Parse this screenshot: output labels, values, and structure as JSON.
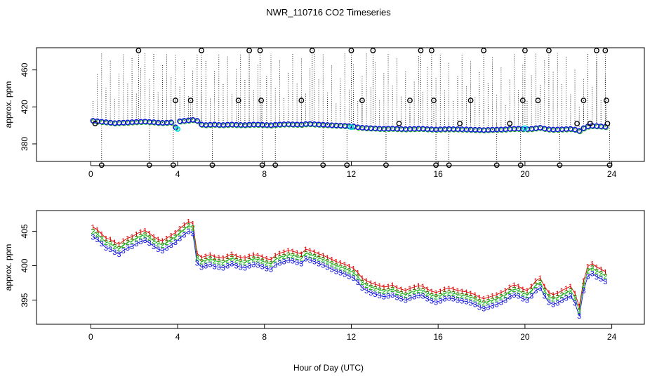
{
  "title": "NWR_110716  CO2 Timeseries",
  "colors": {
    "blue": "#1010e0",
    "red": "#e00000",
    "green": "#10b010",
    "cyan": "#00e0e0",
    "black": "#000000"
  },
  "chart_data": [
    {
      "type": "scatter",
      "name": "top-panel",
      "xlabel": "",
      "ylabel": "approx. ppm",
      "xlim": [
        -2.5,
        25.5
      ],
      "ylim": [
        361,
        484
      ],
      "xticks": [
        0,
        4,
        8,
        12,
        16,
        20,
        24
      ],
      "yticks": [
        380,
        420,
        460
      ],
      "grid": false,
      "main_series": {
        "name": "co2",
        "x": [
          0.1,
          0.3,
          0.5,
          0.7,
          0.9,
          1.1,
          1.3,
          1.5,
          1.7,
          1.9,
          2.1,
          2.3,
          2.5,
          2.7,
          2.9,
          3.1,
          3.3,
          3.5,
          3.7,
          3.9,
          4.1,
          4.3,
          4.5,
          4.7,
          4.9,
          5.1,
          5.3,
          5.5,
          5.7,
          5.9,
          6.1,
          6.3,
          6.5,
          6.7,
          6.9,
          7.1,
          7.3,
          7.5,
          7.7,
          7.9,
          8.1,
          8.3,
          8.5,
          8.7,
          8.9,
          9.1,
          9.3,
          9.5,
          9.7,
          9.9,
          10.1,
          10.3,
          10.5,
          10.7,
          10.9,
          11.1,
          11.3,
          11.5,
          11.7,
          11.9,
          12.1,
          12.3,
          12.5,
          12.7,
          12.9,
          13.1,
          13.3,
          13.5,
          13.7,
          13.9,
          14.1,
          14.3,
          14.5,
          14.7,
          14.9,
          15.1,
          15.3,
          15.5,
          15.7,
          15.9,
          16.1,
          16.3,
          16.5,
          16.7,
          16.9,
          17.1,
          17.3,
          17.5,
          17.7,
          17.9,
          18.1,
          18.3,
          18.5,
          18.7,
          18.9,
          19.1,
          19.3,
          19.5,
          19.7,
          19.9,
          20.1,
          20.3,
          20.5,
          20.7,
          20.9,
          21.1,
          21.3,
          21.5,
          21.7,
          21.9,
          22.1,
          22.3,
          22.5,
          22.7,
          22.9,
          23.1,
          23.3,
          23.5,
          23.7
        ],
        "y": [
          405,
          404.5,
          404,
          403.5,
          403,
          402.5,
          402.8,
          403,
          403.2,
          403.5,
          403.8,
          404,
          404.2,
          403.8,
          403.5,
          403,
          402.8,
          403,
          403.3,
          398,
          404.5,
          405,
          405.5,
          406,
          405,
          401,
          400.5,
          400.8,
          401,
          400.6,
          400.5,
          400.8,
          401,
          400.7,
          400.6,
          400.5,
          400.8,
          401,
          400.9,
          400.7,
          400.5,
          400.3,
          400.8,
          401,
          401.2,
          401.3,
          401.1,
          401,
          400.9,
          401.5,
          401.6,
          401.3,
          401,
          400.8,
          400.5,
          400.2,
          400,
          399.8,
          399.5,
          399.2,
          399,
          398,
          397.5,
          397.2,
          397,
          396.8,
          396.5,
          396.4,
          396.5,
          396.6,
          396.3,
          396.1,
          396,
          396.2,
          396.3,
          396.5,
          396.4,
          396,
          395.8,
          395.6,
          395.8,
          396,
          396.1,
          396,
          395.9,
          395.8,
          395.7,
          395.5,
          395.3,
          395.2,
          395,
          395.2,
          395.4,
          395.5,
          395.6,
          395.8,
          396.2,
          396.4,
          396.5,
          396.2,
          396,
          396.3,
          397,
          397.5,
          396.5,
          395.8,
          395.5,
          395.6,
          395.8,
          396,
          396.2,
          395.5,
          394,
          397,
          399,
          399.5,
          399.3,
          399,
          398.5
        ]
      },
      "outlier_spikes": {
        "x": [
          0.2,
          0.5,
          2.2,
          2.7,
          3.8,
          3.9,
          4.6,
          5.1,
          5.6,
          6.8,
          7.3,
          7.8,
          7.85,
          7.9,
          8.5,
          9.7,
          10.2,
          10.7,
          11.8,
          12.0,
          12.5,
          13.0,
          13.6,
          14.2,
          14.7,
          15.2,
          15.7,
          15.8,
          15.9,
          16.5,
          17.0,
          17.5,
          18.1,
          18.7,
          19.3,
          19.8,
          19.9,
          20.0,
          20.6,
          21.1,
          21.6,
          22.4,
          22.7,
          23.0,
          23.3,
          23.7,
          23.75,
          23.8,
          23.9
        ],
        "y": [
          402,
          357,
          481,
          357,
          357,
          427,
          427,
          481,
          357,
          427,
          481,
          481,
          427,
          357,
          357,
          427,
          481,
          357,
          357,
          481,
          427,
          481,
          357,
          402,
          427,
          481,
          481,
          427,
          357,
          357,
          402,
          427,
          481,
          357,
          402,
          357,
          427,
          481,
          427,
          481,
          357,
          402,
          427,
          402,
          481,
          481,
          427,
          402,
          357
        ]
      },
      "dotted_drops_note": "dense vertical dotted lines from each point up to spikes",
      "highlight_points": [
        {
          "x": 4.0,
          "y": 396,
          "color": "cyan"
        },
        {
          "x": 12.0,
          "y": 398,
          "color": "cyan"
        },
        {
          "x": 20.0,
          "y": 397,
          "color": "cyan"
        }
      ]
    },
    {
      "type": "scatter",
      "name": "bottom-panel",
      "xlabel": "Hour of Day (UTC)",
      "ylabel": "approx. ppm",
      "xlim": [
        -2.5,
        25.5
      ],
      "ylim": [
        391.5,
        408
      ],
      "xticks": [
        0,
        4,
        8,
        12,
        16,
        20,
        24
      ],
      "yticks": [
        395,
        400,
        405
      ],
      "grid": false,
      "label_series": [
        {
          "name": "1",
          "color": "red",
          "offset": 0.6
        },
        {
          "name": "2",
          "color": "green",
          "offset": 0.0
        },
        {
          "name": "3",
          "color": "blue",
          "offset": -0.8
        }
      ],
      "base_series": {
        "x": [
          0.1,
          0.3,
          0.5,
          0.7,
          0.9,
          1.1,
          1.3,
          1.5,
          1.7,
          1.9,
          2.1,
          2.3,
          2.5,
          2.7,
          2.9,
          3.1,
          3.3,
          3.5,
          3.7,
          3.9,
          4.1,
          4.3,
          4.5,
          4.7,
          4.9,
          5.1,
          5.3,
          5.5,
          5.7,
          5.9,
          6.1,
          6.3,
          6.5,
          6.7,
          6.9,
          7.1,
          7.3,
          7.5,
          7.7,
          7.9,
          8.1,
          8.3,
          8.5,
          8.7,
          8.9,
          9.1,
          9.3,
          9.5,
          9.7,
          9.9,
          10.1,
          10.3,
          10.5,
          10.7,
          10.9,
          11.1,
          11.3,
          11.5,
          11.7,
          11.9,
          12.1,
          12.3,
          12.5,
          12.7,
          12.9,
          13.1,
          13.3,
          13.5,
          13.7,
          13.9,
          14.1,
          14.3,
          14.5,
          14.7,
          14.9,
          15.1,
          15.3,
          15.5,
          15.7,
          15.9,
          16.1,
          16.3,
          16.5,
          16.7,
          16.9,
          17.1,
          17.3,
          17.5,
          17.7,
          17.9,
          18.1,
          18.3,
          18.5,
          18.7,
          18.9,
          19.1,
          19.3,
          19.5,
          19.7,
          19.9,
          20.1,
          20.3,
          20.5,
          20.7,
          20.9,
          21.1,
          21.3,
          21.5,
          21.7,
          21.9,
          22.1,
          22.3,
          22.5,
          22.7,
          22.9,
          23.1,
          23.3,
          23.5,
          23.7
        ],
        "y": [
          405,
          404.6,
          404,
          403.4,
          403.2,
          402.8,
          402.5,
          403,
          403.4,
          403.6,
          404,
          404.3,
          404.5,
          404.1,
          403.6,
          403.2,
          403,
          403.4,
          403.8,
          404.2,
          404.8,
          405.3,
          405.8,
          405.5,
          401.2,
          400.6,
          400.8,
          401,
          400.7,
          400.6,
          400.5,
          400.8,
          401.1,
          400.8,
          400.6,
          400.5,
          400.8,
          401,
          400.9,
          400.7,
          400.4,
          400.3,
          400.9,
          401.2,
          401.4,
          401.6,
          401.5,
          401.3,
          401.1,
          401.8,
          401.6,
          401.4,
          401.1,
          400.9,
          400.6,
          400.3,
          400,
          399.8,
          399.6,
          399.3,
          399,
          398.4,
          397.6,
          397.2,
          396.9,
          396.7,
          396.5,
          396.3,
          396.4,
          396.6,
          396.2,
          396,
          395.8,
          396.1,
          396.3,
          396.5,
          396.4,
          396,
          395.7,
          395.5,
          395.7,
          396,
          396.1,
          396,
          395.8,
          395.7,
          395.6,
          395.4,
          395.2,
          394.8,
          394.6,
          394.8,
          395,
          395.2,
          395.5,
          395.8,
          396.3,
          396.6,
          396.4,
          396,
          395.8,
          396.4,
          397.2,
          397.6,
          396.4,
          395.5,
          395.2,
          395.4,
          395.8,
          396.1,
          396.4,
          395.4,
          393.5,
          397.2,
          399.3,
          399.7,
          399.2,
          398.9,
          398.5
        ]
      }
    }
  ]
}
